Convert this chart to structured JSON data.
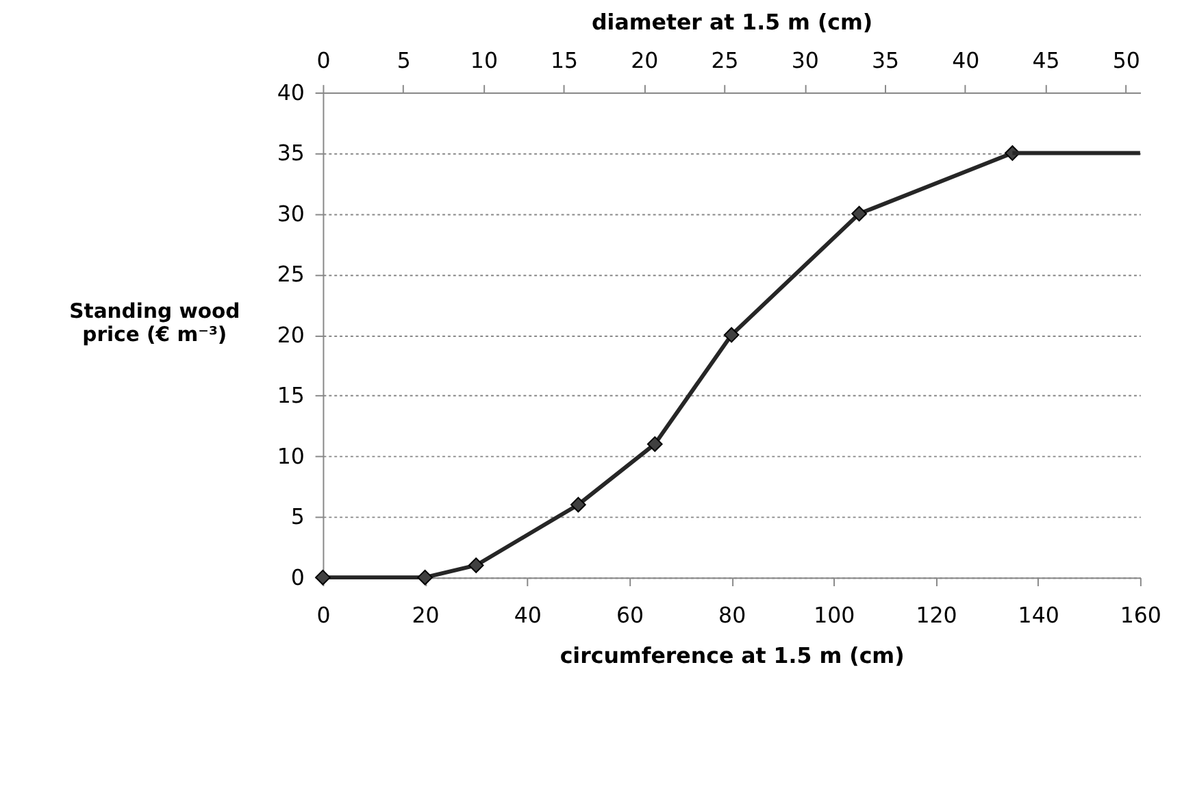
{
  "chart_data": {
    "type": "line",
    "xlabel": "circumference at 1.5 m (cm)",
    "x2label": "diameter at 1.5 m (cm)",
    "ylabel": "Standing wood price (€ m⁻³)",
    "xlim": [
      0,
      160
    ],
    "xticks": [
      0,
      20,
      40,
      60,
      80,
      100,
      120,
      140,
      160
    ],
    "x2lim": [
      0,
      50.9
    ],
    "x2ticks": [
      0,
      5,
      10,
      15,
      20,
      25,
      30,
      35,
      40,
      45,
      50
    ],
    "ylim": [
      0,
      40
    ],
    "yticks": [
      0,
      5,
      10,
      15,
      20,
      25,
      30,
      35,
      40
    ],
    "grid": "y",
    "series": [
      {
        "color": "#262626",
        "marker": "diamond",
        "x": [
          0,
          20,
          30,
          50,
          65,
          80,
          105,
          135
        ],
        "values": [
          0,
          0,
          1,
          6,
          11,
          20,
          30,
          35
        ]
      },
      {
        "color": "#262626",
        "marker": "none",
        "x": [
          135,
          160
        ],
        "values": [
          35,
          35
        ]
      }
    ]
  }
}
